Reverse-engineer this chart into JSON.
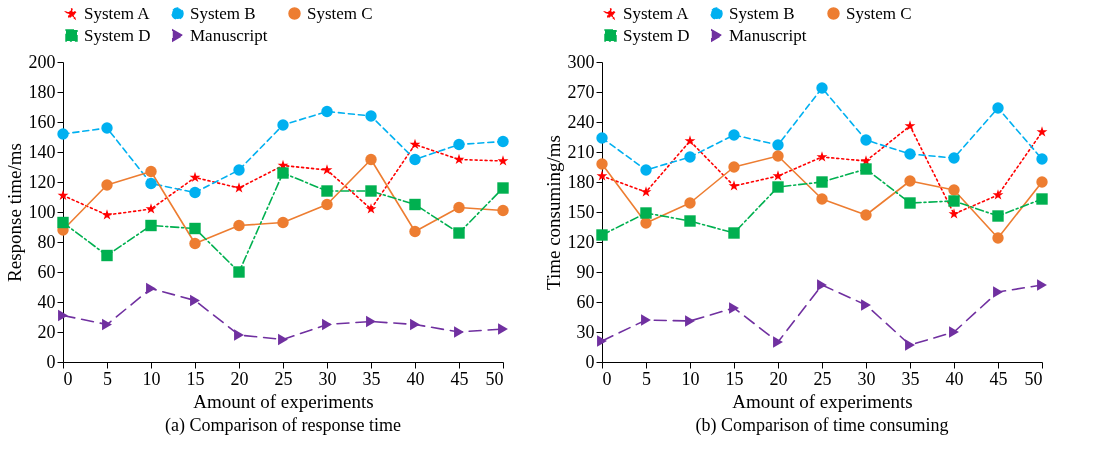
{
  "chart_data": [
    {
      "type": "line",
      "title": "(a) Comparison of response time",
      "xlabel": "Amount of experiments",
      "ylabel": "Response time/ms",
      "x": [
        0,
        5,
        10,
        15,
        20,
        25,
        30,
        35,
        40,
        45,
        50
      ],
      "xlim": [
        0,
        50
      ],
      "xticks": [
        0,
        5,
        10,
        15,
        20,
        25,
        30,
        35,
        40,
        45,
        50
      ],
      "ylim": [
        0,
        200
      ],
      "yticks": [
        0,
        20,
        40,
        60,
        80,
        100,
        120,
        140,
        160,
        180,
        200
      ],
      "grid": false,
      "legend": "top",
      "series": [
        {
          "name": "System A",
          "color": "#ff0000",
          "marker": "star",
          "line_style": "dotted",
          "values": [
            111,
            98,
            102,
            123,
            116,
            131,
            128,
            102,
            145,
            135,
            134
          ]
        },
        {
          "name": "System B",
          "color": "#00b0f0",
          "marker": "circle",
          "line_style": "dashed",
          "values": [
            152,
            156,
            119,
            113,
            128,
            158,
            167,
            164,
            135,
            145,
            147
          ]
        },
        {
          "name": "System C",
          "color": "#ed7d31",
          "marker": "circle",
          "line_style": "solid",
          "values": [
            88,
            118,
            127,
            79,
            91,
            93,
            105,
            135,
            87,
            103,
            101
          ]
        },
        {
          "name": "System D",
          "color": "#00b050",
          "marker": "square",
          "line_style": "dashdot",
          "values": [
            93,
            71,
            91,
            89,
            60,
            126,
            114,
            114,
            105,
            86,
            116
          ]
        },
        {
          "name": "Manuscript",
          "color": "#7030a0",
          "marker": "triangle",
          "line_style": "longdash",
          "values": [
            31,
            25,
            49,
            41,
            18,
            15,
            25,
            27,
            25,
            20,
            22
          ]
        }
      ]
    },
    {
      "type": "line",
      "title": "(b) Comparison of time consuming",
      "xlabel": "Amount of experiments",
      "ylabel": "Time consuming/ms",
      "x": [
        0,
        5,
        10,
        15,
        20,
        25,
        30,
        35,
        40,
        45,
        50
      ],
      "xlim": [
        0,
        50
      ],
      "xticks": [
        0,
        5,
        10,
        15,
        20,
        25,
        30,
        35,
        40,
        45,
        50
      ],
      "ylim": [
        0,
        300
      ],
      "yticks": [
        0,
        30,
        60,
        90,
        120,
        150,
        180,
        210,
        240,
        270,
        300
      ],
      "grid": false,
      "legend": "top",
      "series": [
        {
          "name": "System A",
          "color": "#ff0000",
          "marker": "star",
          "line_style": "dotted",
          "values": [
            186,
            170,
            221,
            176,
            186,
            205,
            201,
            236,
            148,
            167,
            230
          ]
        },
        {
          "name": "System B",
          "color": "#00b0f0",
          "marker": "circle",
          "line_style": "dashed",
          "values": [
            224,
            192,
            205,
            227,
            217,
            274,
            222,
            208,
            204,
            254,
            203
          ]
        },
        {
          "name": "System C",
          "color": "#ed7d31",
          "marker": "circle",
          "line_style": "solid",
          "values": [
            198,
            139,
            159,
            195,
            206,
            163,
            147,
            181,
            172,
            124,
            180
          ]
        },
        {
          "name": "System D",
          "color": "#00b050",
          "marker": "square",
          "line_style": "dashdot",
          "values": [
            127,
            149,
            141,
            129,
            175,
            180,
            193,
            159,
            161,
            146,
            163
          ]
        },
        {
          "name": "Manuscript",
          "color": "#7030a0",
          "marker": "triangle",
          "line_style": "longdash",
          "values": [
            21,
            42,
            41,
            54,
            20,
            77,
            57,
            17,
            30,
            70,
            77
          ]
        }
      ]
    }
  ]
}
